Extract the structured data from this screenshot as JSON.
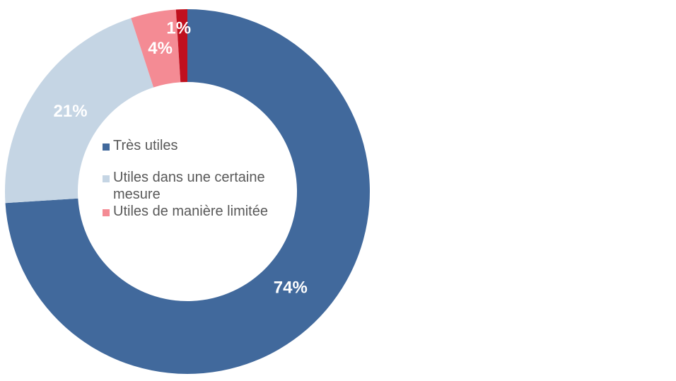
{
  "chart_data": {
    "type": "donut",
    "categories": [
      "Très utiles",
      "Utiles dans une certaine mesure",
      "Utiles de manière limitée",
      null
    ],
    "values": [
      74,
      21,
      4,
      1
    ],
    "value_labels": [
      "74%",
      "21%",
      "4%",
      "1%"
    ],
    "colors": [
      "#41699c",
      "#c5d5e4",
      "#f48b94",
      "#c0101e"
    ]
  }
}
